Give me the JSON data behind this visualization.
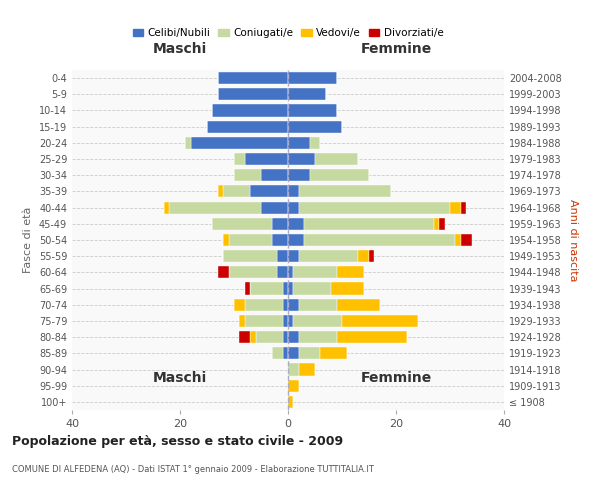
{
  "age_groups": [
    "100+",
    "95-99",
    "90-94",
    "85-89",
    "80-84",
    "75-79",
    "70-74",
    "65-69",
    "60-64",
    "55-59",
    "50-54",
    "45-49",
    "40-44",
    "35-39",
    "30-34",
    "25-29",
    "20-24",
    "15-19",
    "10-14",
    "5-9",
    "0-4"
  ],
  "birth_years": [
    "≤ 1908",
    "1909-1913",
    "1914-1918",
    "1919-1923",
    "1924-1928",
    "1929-1933",
    "1934-1938",
    "1939-1943",
    "1944-1948",
    "1949-1953",
    "1954-1958",
    "1959-1963",
    "1964-1968",
    "1969-1973",
    "1974-1978",
    "1979-1983",
    "1984-1988",
    "1989-1993",
    "1994-1998",
    "1999-2003",
    "2004-2008"
  ],
  "colors": {
    "celibi": "#4472c4",
    "coniugati": "#c5d9a0",
    "vedovi": "#ffc000",
    "divorziati": "#cc0000"
  },
  "maschi": {
    "celibi": [
      0,
      0,
      0,
      1,
      1,
      1,
      1,
      1,
      2,
      2,
      3,
      3,
      5,
      7,
      5,
      8,
      18,
      15,
      14,
      13,
      13
    ],
    "coniugati": [
      0,
      0,
      0,
      2,
      5,
      7,
      7,
      6,
      9,
      10,
      8,
      11,
      17,
      5,
      5,
      2,
      1,
      0,
      0,
      0,
      0
    ],
    "vedovi": [
      0,
      0,
      0,
      0,
      1,
      1,
      2,
      0,
      0,
      0,
      1,
      0,
      1,
      1,
      0,
      0,
      0,
      0,
      0,
      0,
      0
    ],
    "divorziati": [
      0,
      0,
      0,
      0,
      2,
      0,
      0,
      1,
      2,
      0,
      0,
      0,
      0,
      0,
      0,
      0,
      0,
      0,
      0,
      0,
      0
    ]
  },
  "femmine": {
    "celibi": [
      0,
      0,
      0,
      2,
      2,
      1,
      2,
      1,
      1,
      2,
      3,
      3,
      2,
      2,
      4,
      5,
      4,
      10,
      9,
      7,
      9
    ],
    "coniugati": [
      0,
      0,
      2,
      4,
      7,
      9,
      7,
      7,
      8,
      11,
      28,
      24,
      28,
      17,
      11,
      8,
      2,
      0,
      0,
      0,
      0
    ],
    "vedovi": [
      1,
      2,
      3,
      5,
      13,
      14,
      8,
      6,
      5,
      2,
      1,
      1,
      2,
      0,
      0,
      0,
      0,
      0,
      0,
      0,
      0
    ],
    "divorziati": [
      0,
      0,
      0,
      0,
      0,
      0,
      0,
      0,
      0,
      1,
      2,
      1,
      1,
      0,
      0,
      0,
      0,
      0,
      0,
      0,
      0
    ]
  },
  "title": "Popolazione per età, sesso e stato civile - 2009",
  "subtitle": "COMUNE DI ALFEDENA (AQ) - Dati ISTAT 1° gennaio 2009 - Elaborazione TUTTITALIA.IT",
  "xlabel_maschi": "Maschi",
  "xlabel_femmine": "Femmine",
  "ylabel": "Fasce di età",
  "ylabel_right": "Anni di nascita",
  "xlim": 40,
  "bg_color": "#f9f9f9",
  "grid_color": "#cccccc",
  "legend_labels": [
    "Celibi/Nubili",
    "Coniugati/e",
    "Vedovi/e",
    "Divorziati/e"
  ]
}
